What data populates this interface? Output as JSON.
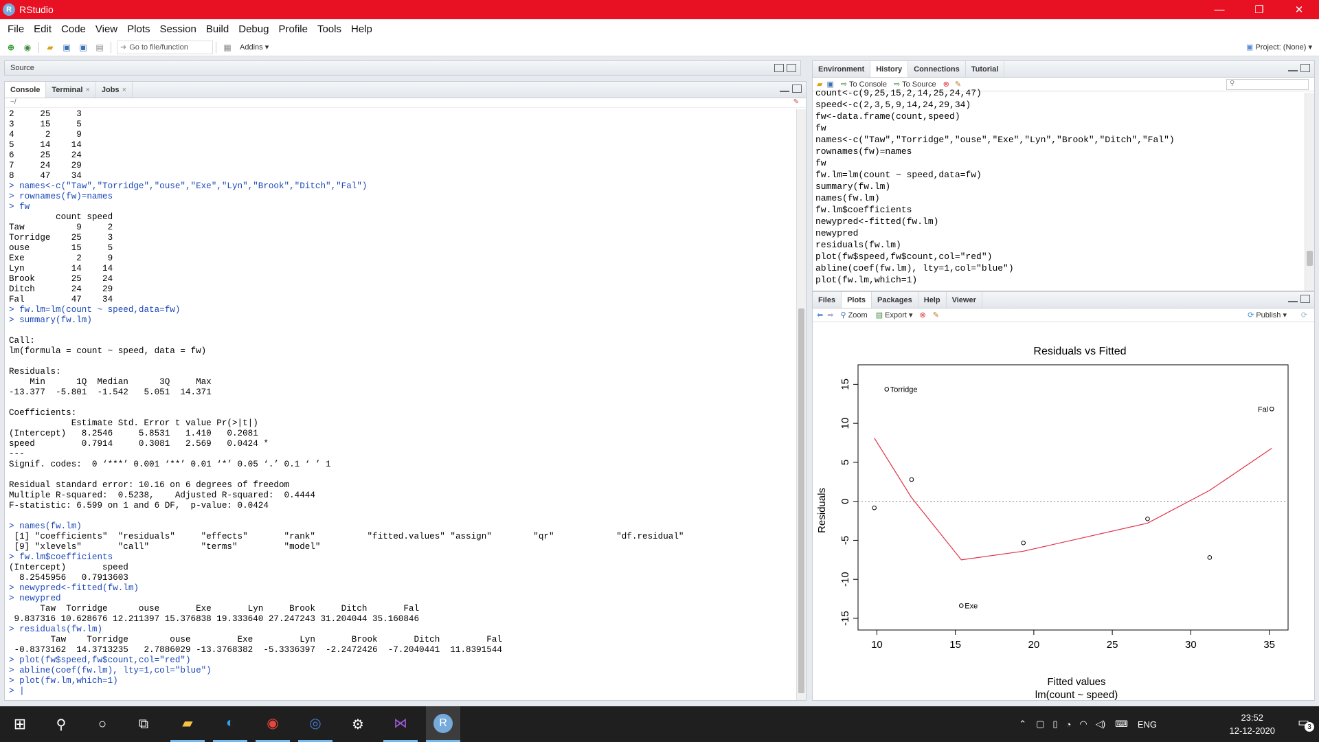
{
  "window": {
    "title": "RStudio",
    "app_icon": "R"
  },
  "menu": [
    "File",
    "Edit",
    "Code",
    "View",
    "Plots",
    "Session",
    "Build",
    "Debug",
    "Profile",
    "Tools",
    "Help"
  ],
  "toolbar": {
    "goto_placeholder": "Go to file/function",
    "addins": "Addins",
    "project": "Project: (None)"
  },
  "source_pane": {
    "title": "Source"
  },
  "console_pane": {
    "tabs": [
      "Console",
      "Terminal",
      "Jobs"
    ],
    "path": "~/",
    "lines": [
      {
        "t": "2     25     3",
        "c": false
      },
      {
        "t": "3     15     5",
        "c": false
      },
      {
        "t": "4      2     9",
        "c": false
      },
      {
        "t": "5     14    14",
        "c": false
      },
      {
        "t": "6     25    24",
        "c": false
      },
      {
        "t": "7     24    29",
        "c": false
      },
      {
        "t": "8     47    34",
        "c": false
      },
      {
        "t": "> names<-c(\"Taw\",\"Torridge\",\"ouse\",\"Exe\",\"Lyn\",\"Brook\",\"Ditch\",\"Fal\")",
        "c": true
      },
      {
        "t": "> rownames(fw)=names",
        "c": true
      },
      {
        "t": "> fw",
        "c": true
      },
      {
        "t": "         count speed",
        "c": false
      },
      {
        "t": "Taw          9     2",
        "c": false
      },
      {
        "t": "Torridge    25     3",
        "c": false
      },
      {
        "t": "ouse        15     5",
        "c": false
      },
      {
        "t": "Exe          2     9",
        "c": false
      },
      {
        "t": "Lyn         14    14",
        "c": false
      },
      {
        "t": "Brook       25    24",
        "c": false
      },
      {
        "t": "Ditch       24    29",
        "c": false
      },
      {
        "t": "Fal         47    34",
        "c": false
      },
      {
        "t": "> fw.lm=lm(count ~ speed,data=fw)",
        "c": true
      },
      {
        "t": "> summary(fw.lm)",
        "c": true
      },
      {
        "t": "",
        "c": false
      },
      {
        "t": "Call:",
        "c": false
      },
      {
        "t": "lm(formula = count ~ speed, data = fw)",
        "c": false
      },
      {
        "t": "",
        "c": false
      },
      {
        "t": "Residuals:",
        "c": false
      },
      {
        "t": "    Min      1Q  Median      3Q     Max ",
        "c": false
      },
      {
        "t": "-13.377  -5.801  -1.542   5.051  14.371 ",
        "c": false
      },
      {
        "t": "",
        "c": false
      },
      {
        "t": "Coefficients:",
        "c": false
      },
      {
        "t": "            Estimate Std. Error t value Pr(>|t|)  ",
        "c": false
      },
      {
        "t": "(Intercept)   8.2546     5.8531   1.410   0.2081  ",
        "c": false
      },
      {
        "t": "speed         0.7914     0.3081   2.569   0.0424 *",
        "c": false
      },
      {
        "t": "---",
        "c": false
      },
      {
        "t": "Signif. codes:  0 ‘***’ 0.001 ‘**’ 0.01 ‘*’ 0.05 ‘.’ 0.1 ‘ ’ 1",
        "c": false
      },
      {
        "t": "",
        "c": false
      },
      {
        "t": "Residual standard error: 10.16 on 6 degrees of freedom",
        "c": false
      },
      {
        "t": "Multiple R-squared:  0.5238,\tAdjusted R-squared:  0.4444 ",
        "c": false
      },
      {
        "t": "F-statistic: 6.599 on 1 and 6 DF,  p-value: 0.0424",
        "c": false
      },
      {
        "t": "",
        "c": false
      },
      {
        "t": "> names(fw.lm)",
        "c": true
      },
      {
        "t": " [1] \"coefficients\"  \"residuals\"     \"effects\"       \"rank\"          \"fitted.values\" \"assign\"        \"qr\"            \"df.residual\"  ",
        "c": false
      },
      {
        "t": " [9] \"xlevels\"       \"call\"          \"terms\"         \"model\"        ",
        "c": false
      },
      {
        "t": "> fw.lm$coefficients",
        "c": true
      },
      {
        "t": "(Intercept)       speed ",
        "c": false
      },
      {
        "t": "  8.2545956   0.7913603 ",
        "c": false
      },
      {
        "t": "> newypred<-fitted(fw.lm)",
        "c": true
      },
      {
        "t": "> newypred",
        "c": true
      },
      {
        "t": "      Taw  Torridge      ouse       Exe       Lyn     Brook     Ditch       Fal ",
        "c": false
      },
      {
        "t": " 9.837316 10.628676 12.211397 15.376838 19.333640 27.247243 31.204044 35.160846 ",
        "c": false
      },
      {
        "t": "> residuals(fw.lm)",
        "c": true
      },
      {
        "t": "        Taw    Torridge        ouse         Exe         Lyn       Brook       Ditch         Fal ",
        "c": false
      },
      {
        "t": " -0.8373162  14.3713235   2.7886029 -13.3768382  -5.3336397  -2.2472426  -7.2040441  11.8391544 ",
        "c": false
      },
      {
        "t": "> plot(fw$speed,fw$count,col=\"red\")",
        "c": true
      },
      {
        "t": "> abline(coef(fw.lm), lty=1,col=\"blue\")",
        "c": true
      },
      {
        "t": "> plot(fw.lm,which=1)",
        "c": true
      },
      {
        "t": "> |",
        "c": true
      }
    ]
  },
  "env_pane": {
    "tabs": [
      "Environment",
      "History",
      "Connections",
      "Tutorial"
    ],
    "to_console": "To Console",
    "to_source": "To Source",
    "history": [
      "count<-c(9,25,15,2,14,25,24,47)",
      "speed<-c(2,3,5,9,14,24,29,34)",
      "fw<-data.frame(count,speed)",
      "fw",
      "names<-c(\"Taw\",\"Torridge\",\"ouse\",\"Exe\",\"Lyn\",\"Brook\",\"Ditch\",\"Fal\")",
      "rownames(fw)=names",
      "fw",
      "fw.lm=lm(count ~ speed,data=fw)",
      "summary(fw.lm)",
      "names(fw.lm)",
      "fw.lm$coefficients",
      "newypred<-fitted(fw.lm)",
      "newypred",
      "residuals(fw.lm)",
      "plot(fw$speed,fw$count,col=\"red\")",
      "abline(coef(fw.lm), lty=1,col=\"blue\")",
      "plot(fw.lm,which=1)"
    ]
  },
  "plots_pane": {
    "tabs": [
      "Files",
      "Plots",
      "Packages",
      "Help",
      "Viewer"
    ],
    "zoom": "Zoom",
    "export": "Export",
    "publish": "Publish"
  },
  "chart_data": {
    "type": "scatter",
    "title": "Residuals vs Fitted",
    "xlabel": "Fitted values",
    "xlabel2": "lm(count ~ speed)",
    "ylabel": "Residuals",
    "xlim": [
      8.8,
      36.2
    ],
    "ylim": [
      -16.5,
      17.5
    ],
    "xticks": [
      10,
      15,
      20,
      25,
      30,
      35
    ],
    "yticks": [
      -15,
      -10,
      -5,
      0,
      5,
      10,
      15
    ],
    "points": [
      {
        "x": 9.837316,
        "y": -0.8373162
      },
      {
        "x": 10.628676,
        "y": 14.3713235,
        "label": "Torridge"
      },
      {
        "x": 12.211397,
        "y": 2.7886029
      },
      {
        "x": 15.376838,
        "y": -13.3768382,
        "label": "Exe"
      },
      {
        "x": 19.33364,
        "y": -5.3336397
      },
      {
        "x": 27.247243,
        "y": -2.2472426
      },
      {
        "x": 31.204044,
        "y": -7.2040441
      },
      {
        "x": 35.160846,
        "y": 11.8391544,
        "label": "Fal"
      }
    ],
    "smooth": [
      [
        9.84,
        8.1
      ],
      [
        12.2,
        0.5
      ],
      [
        15.38,
        -7.5
      ],
      [
        19.33,
        -6.4
      ],
      [
        27.25,
        -2.8
      ],
      [
        31.2,
        1.4
      ],
      [
        35.16,
        6.8
      ]
    ],
    "smooth_color": "#e0304a",
    "zero_line": 0
  },
  "taskbar": {
    "lang": "ENG",
    "time": "23:52",
    "date": "12-12-2020",
    "notif": "3"
  },
  "colors": {
    "titlebar": "#e81123",
    "command": "#1a47b8",
    "taskbar": "#1f1f1f"
  }
}
